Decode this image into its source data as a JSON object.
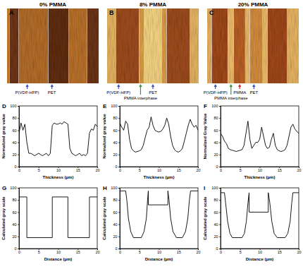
{
  "chart_data": [
    {
      "type": "image",
      "panel": "A",
      "title": "0% PMMA",
      "xlim": [
        0,
        20
      ],
      "tick_labels": false,
      "bands": [
        [
          0,
          0.5
        ],
        [
          0.5,
          2.5
        ],
        [
          2.5,
          9
        ],
        [
          9,
          13.5
        ],
        [
          13.5,
          17.5
        ],
        [
          17.5,
          20
        ]
      ],
      "colors": [
        "#c47a2a",
        "#6b3415",
        "#b06a28",
        "#5e2c12",
        "#b56e2a",
        "#6a3314"
      ],
      "annotations": [
        {
          "text": "P(VDF-HFP)",
          "x": 4.4,
          "color": "#3b4fb4"
        },
        {
          "text": "PET",
          "x": 9.8,
          "color": "#3b4fb4"
        }
      ]
    },
    {
      "type": "image",
      "panel": "B",
      "title": "8% PMMA",
      "xlim": [
        0,
        20
      ],
      "tick_labels": false,
      "bands": [
        [
          0,
          2
        ],
        [
          2,
          7
        ],
        [
          7,
          8
        ],
        [
          8,
          12
        ],
        [
          12,
          13
        ],
        [
          13,
          18
        ],
        [
          18,
          20
        ]
      ],
      "colors": [
        "#e0b060",
        "#9a4a1c",
        "#d89a45",
        "#f0d080",
        "#d89a45",
        "#9a4a1c",
        "#e0b060"
      ],
      "annotations": [
        {
          "text": "P(VDF-HFP)",
          "x": 2.5,
          "color": "#3b4fb4"
        },
        {
          "text": "PMMA interphase",
          "x": 7.3,
          "color": "#2e9a3a"
        },
        {
          "text": "PET",
          "x": 10,
          "color": "#3b4fb4"
        }
      ]
    },
    {
      "type": "image",
      "panel": "C",
      "title": "20% PMMA",
      "xlim": [
        0,
        20
      ],
      "tick_labels": false,
      "bands": [
        [
          0,
          1
        ],
        [
          1,
          4.5
        ],
        [
          4.5,
          5.8
        ],
        [
          5.8,
          8.3
        ],
        [
          8.3,
          9.3
        ],
        [
          9.3,
          12
        ],
        [
          12,
          13.2
        ],
        [
          13.2,
          17.5
        ],
        [
          17.5,
          20
        ]
      ],
      "colors": [
        "#e3b060",
        "#9c461a",
        "#e8b868",
        "#b65e24",
        "#e8b868",
        "#d08a3c",
        "#e8b868",
        "#9c461a",
        "#e3b060"
      ],
      "annotations": [
        {
          "text": "P(VDF-HFP)",
          "x": 1.8,
          "color": "#3b4fb4"
        },
        {
          "text": "PMMA interphase",
          "x": 5.2,
          "color": "#2e9a3a"
        },
        {
          "text": "PMMA",
          "x": 7.1,
          "color": "#d42a2a"
        },
        {
          "text": "PET",
          "x": 10.2,
          "color": "#3b4fb4"
        }
      ]
    },
    {
      "type": "line",
      "panel": "D",
      "xlabel": "Thickness (µm)",
      "ylabel": "Normalized gray value",
      "xlim": [
        0,
        20
      ],
      "ylim": [
        0,
        100
      ],
      "xticks": [
        0,
        5,
        10,
        15,
        20
      ],
      "yticks": [
        0,
        20,
        40,
        60,
        80,
        100
      ],
      "x": [
        0,
        0.5,
        1,
        1.5,
        2,
        2.5,
        3,
        3.5,
        4,
        4.5,
        5,
        5.5,
        6,
        6.5,
        7,
        7.5,
        8,
        8.5,
        9,
        9.5,
        10,
        10.5,
        11,
        11.5,
        12,
        12.5,
        13,
        13.5,
        14,
        14.5,
        15,
        15.5,
        16,
        16.5,
        17,
        17.5,
        18,
        18.5,
        19,
        19.5,
        20
      ],
      "series": [
        {
          "color": "#000000",
          "values": [
            55,
            72,
            60,
            70,
            40,
            22,
            22,
            20,
            18,
            20,
            22,
            20,
            18,
            20,
            22,
            18,
            22,
            68,
            72,
            70,
            70,
            72,
            70,
            74,
            72,
            70,
            30,
            22,
            20,
            18,
            20,
            22,
            18,
            20,
            18,
            22,
            55,
            62,
            60,
            70,
            66
          ]
        }
      ]
    },
    {
      "type": "line",
      "panel": "E",
      "xlabel": "Thickness (µm)",
      "ylabel": "Normalized gray value",
      "xlim": [
        0,
        20
      ],
      "ylim": [
        0,
        100
      ],
      "xticks": [
        0,
        5,
        10,
        15,
        20
      ],
      "yticks": [
        0,
        20,
        40,
        60,
        80,
        100
      ],
      "x": [
        0,
        0.5,
        1,
        1.5,
        2,
        2.5,
        3,
        3.5,
        4,
        4.5,
        5,
        5.5,
        6,
        6.5,
        7,
        7.5,
        8,
        8.5,
        9,
        9.5,
        10,
        10.5,
        11,
        11.5,
        12,
        12.5,
        13,
        13.5,
        14,
        14.5,
        15,
        15.5,
        16,
        16.5,
        17,
        17.5,
        18,
        18.5,
        19,
        19.5,
        20
      ],
      "series": [
        {
          "color": "#000000",
          "values": [
            72,
            65,
            60,
            75,
            70,
            45,
            30,
            26,
            24,
            25,
            26,
            28,
            35,
            48,
            60,
            65,
            82,
            68,
            60,
            58,
            57,
            58,
            62,
            68,
            80,
            70,
            50,
            35,
            28,
            25,
            24,
            26,
            30,
            42,
            55,
            68,
            78,
            70,
            65,
            68,
            60
          ]
        }
      ]
    },
    {
      "type": "line",
      "panel": "F",
      "xlabel": "Thickness (µm)",
      "ylabel": "Normalized Gray Value",
      "xlim": [
        0,
        20
      ],
      "ylim": [
        0,
        100
      ],
      "xticks": [
        0,
        5,
        10,
        15,
        20
      ],
      "yticks": [
        0,
        20,
        40,
        60,
        80,
        100
      ],
      "x": [
        0,
        0.5,
        1,
        1.5,
        2,
        2.5,
        3,
        3.5,
        4,
        4.5,
        5,
        5.5,
        6,
        6.5,
        7,
        7.5,
        8,
        8.5,
        9,
        9.5,
        10,
        10.5,
        11,
        11.5,
        12,
        12.5,
        13,
        13.5,
        14,
        14.5,
        15,
        15.5,
        16,
        16.5,
        17,
        17.5,
        18,
        18.5,
        19,
        19.5,
        20
      ],
      "series": [
        {
          "color": "#000000",
          "values": [
            55,
            50,
            42,
            38,
            30,
            28,
            27,
            26,
            25,
            26,
            27,
            28,
            35,
            55,
            75,
            45,
            30,
            35,
            40,
            40,
            45,
            65,
            50,
            35,
            30,
            32,
            45,
            55,
            35,
            28,
            26,
            25,
            26,
            28,
            35,
            50,
            65,
            70,
            62,
            58,
            55
          ]
        }
      ]
    },
    {
      "type": "line",
      "panel": "G",
      "xlabel": "Distance (µm)",
      "ylabel": "Calculated gray scale",
      "xlim": [
        0,
        20
      ],
      "ylim": [
        0,
        100
      ],
      "xticks": [
        0,
        5,
        10,
        15,
        20
      ],
      "yticks": [
        0,
        20,
        40,
        60,
        80,
        100
      ],
      "x": [
        0,
        2,
        2,
        8.5,
        8.5,
        12.5,
        12.5,
        18,
        18,
        20
      ],
      "series": [
        {
          "color": "#000000",
          "values": [
            85,
            85,
            18,
            18,
            85,
            85,
            18,
            18,
            85,
            85
          ]
        }
      ]
    },
    {
      "type": "line",
      "panel": "H",
      "xlabel": "Distance (µm)",
      "ylabel": "Calculated gray scale",
      "xlim": [
        0,
        20
      ],
      "ylim": [
        0,
        100
      ],
      "xticks": [
        0,
        5,
        10,
        15,
        20
      ],
      "yticks": [
        0,
        20,
        40,
        60,
        80,
        100
      ],
      "x": [
        0,
        1.5,
        1.8,
        2.2,
        2.8,
        3.5,
        5.5,
        6.2,
        6.8,
        7.1,
        7.3,
        7.3,
        12.3,
        12.3,
        12.6,
        13,
        13.6,
        14.5,
        16,
        16.8,
        17.4,
        17.8,
        18.1,
        20
      ],
      "series": [
        {
          "color": "#000000",
          "values": [
            95,
            95,
            80,
            50,
            28,
            18,
            18,
            28,
            50,
            80,
            95,
            72,
            72,
            95,
            80,
            50,
            28,
            18,
            18,
            28,
            50,
            80,
            95,
            95
          ]
        }
      ]
    },
    {
      "type": "line",
      "panel": "I",
      "xlabel": "Distance (µm)",
      "ylabel": "Calculated gray scale",
      "xlim": [
        0,
        20
      ],
      "ylim": [
        0,
        100
      ],
      "xticks": [
        0,
        5,
        10,
        15,
        20
      ],
      "yticks": [
        0,
        20,
        40,
        60,
        80,
        100
      ],
      "x": [
        0,
        1,
        1.3,
        1.8,
        2.4,
        3,
        5.5,
        6.1,
        6.6,
        7,
        7.3,
        7.3,
        12.2,
        12.2,
        12.6,
        13.1,
        13.7,
        14.5,
        16.5,
        17.2,
        17.8,
        18.2,
        18.5,
        20
      ],
      "series": [
        {
          "color": "#000000",
          "values": [
            92,
            92,
            75,
            45,
            25,
            18,
            18,
            25,
            45,
            75,
            92,
            60,
            60,
            92,
            75,
            45,
            25,
            18,
            18,
            25,
            45,
            75,
            92,
            92
          ]
        }
      ]
    }
  ]
}
